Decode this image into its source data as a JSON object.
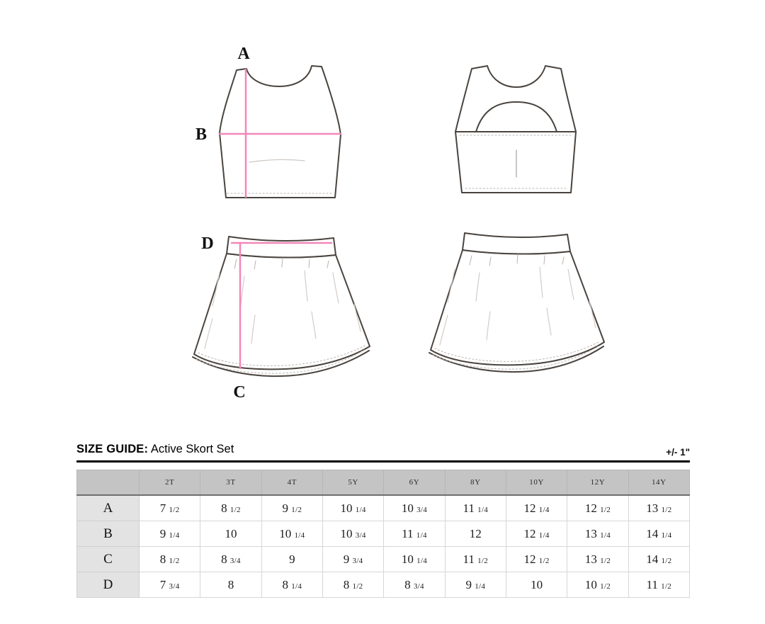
{
  "diagram": {
    "measurement_labels": {
      "a": "A",
      "b": "B",
      "c": "C",
      "d": "D"
    },
    "measurement_line_color": "#F287B8",
    "outline_color": "#4A443F"
  },
  "size_guide": {
    "title_label": "SIZE GUIDE:",
    "title_value": "Active Skort Set",
    "tolerance": "+/- 1\""
  },
  "table": {
    "columns": [
      "2T",
      "3T",
      "4T",
      "5Y",
      "6Y",
      "8Y",
      "10Y",
      "12Y",
      "14Y"
    ],
    "rows": [
      {
        "label": "A",
        "values": [
          "7 1/2",
          "8 1/2",
          "9 1/2",
          "10 1/4",
          "10 3/4",
          "11 1/4",
          "12 1/4",
          "12 1/2",
          "13 1/2"
        ]
      },
      {
        "label": "B",
        "values": [
          "9 1/4",
          "10",
          "10 1/4",
          "10 3/4",
          "11 1/4",
          "12",
          "12 1/4",
          "13 1/4",
          "14 1/4"
        ]
      },
      {
        "label": "C",
        "values": [
          "8 1/2",
          "8 3/4",
          "9",
          "9 3/4",
          "10 1/4",
          "11 1/2",
          "12 1/2",
          "13 1/2",
          "14 1/2"
        ]
      },
      {
        "label": "D",
        "values": [
          "7 3/4",
          "8",
          "8 1/4",
          "8 1/2",
          "8 3/4",
          "9 1/4",
          "10",
          "10 1/2",
          "11 1/2"
        ]
      }
    ]
  }
}
